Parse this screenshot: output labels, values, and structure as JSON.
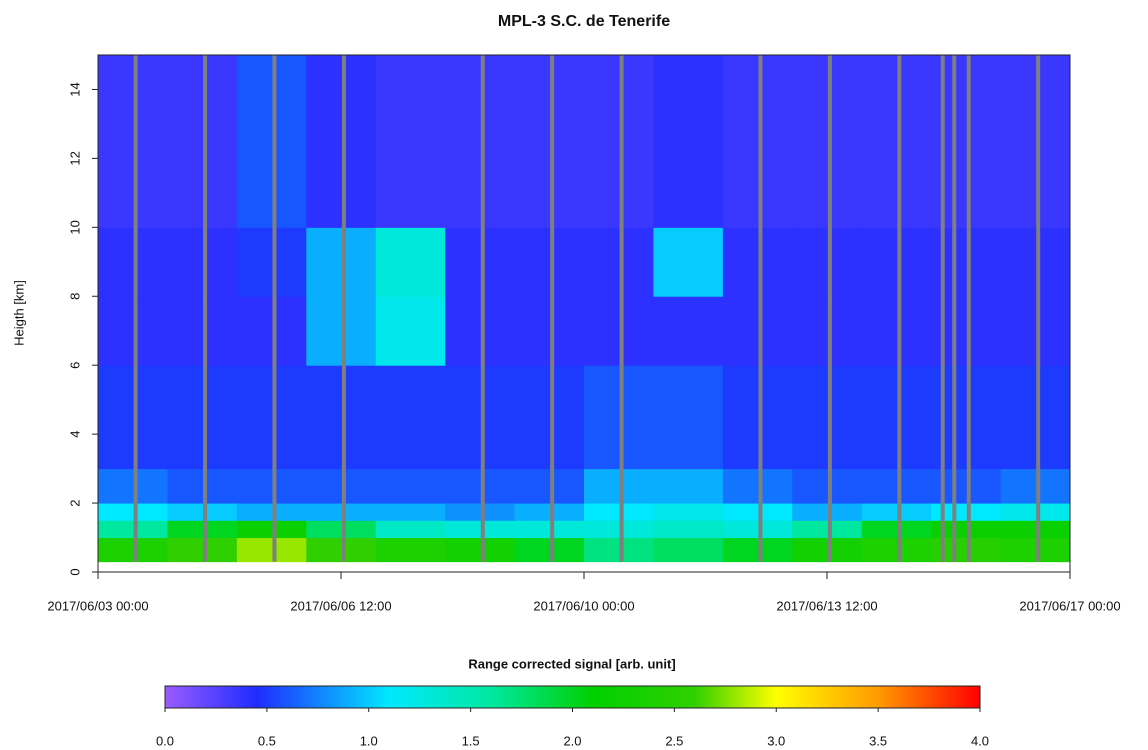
{
  "chart_data": {
    "type": "heatmap",
    "title": "MPL-3 S.C. de Tenerife",
    "y_label": "Heigth [km]",
    "xlim": [
      0,
      336
    ],
    "xticks": [
      {
        "value": 0,
        "label": "2017/06/03 00:00"
      },
      {
        "value": 84,
        "label": "2017/06/06 12:00"
      },
      {
        "value": 168,
        "label": "2017/06/10 00:00"
      },
      {
        "value": 252,
        "label": "2017/06/13 12:00"
      },
      {
        "value": 336,
        "label": "2017/06/17 00:00"
      }
    ],
    "ylim": [
      0,
      15
    ],
    "yticks": [
      0,
      2,
      4,
      6,
      8,
      10,
      12,
      14
    ],
    "x_bins": [
      0,
      24,
      48,
      72,
      96,
      120,
      144,
      168,
      192,
      216,
      240,
      264,
      288,
      312,
      336
    ],
    "y_bins": [
      0.3,
      1,
      1.5,
      2,
      3,
      6,
      8,
      10,
      15
    ],
    "z": [
      [
        2.4,
        2.6,
        2.8,
        2.6,
        2.4,
        2.3,
        2.0,
        1.7,
        1.8,
        2.0,
        2.3,
        2.4,
        2.5,
        2.4
      ],
      [
        1.6,
        2.0,
        2.2,
        1.8,
        1.4,
        1.3,
        1.3,
        1.3,
        1.4,
        1.3,
        1.6,
        2.0,
        2.2,
        2.2
      ],
      [
        1.1,
        1.0,
        0.9,
        0.9,
        0.9,
        0.8,
        0.9,
        1.1,
        1.2,
        1.1,
        0.9,
        1.0,
        1.1,
        1.2
      ],
      [
        0.7,
        0.6,
        0.6,
        0.6,
        0.6,
        0.6,
        0.6,
        0.9,
        0.9,
        0.7,
        0.6,
        0.6,
        0.6,
        0.7
      ],
      [
        0.5,
        0.5,
        0.5,
        0.5,
        0.5,
        0.5,
        0.5,
        0.6,
        0.6,
        0.5,
        0.5,
        0.5,
        0.5,
        0.5
      ],
      [
        0.4,
        0.4,
        0.4,
        0.9,
        1.2,
        0.4,
        0.4,
        0.4,
        0.4,
        0.4,
        0.4,
        0.4,
        0.4,
        0.4
      ],
      [
        0.4,
        0.4,
        0.5,
        0.9,
        1.3,
        0.4,
        0.4,
        0.4,
        1.0,
        0.4,
        0.4,
        0.4,
        0.4,
        0.4
      ],
      [
        0.35,
        0.35,
        0.6,
        0.4,
        0.35,
        0.35,
        0.35,
        0.35,
        0.4,
        0.35,
        0.35,
        0.35,
        0.35,
        0.35
      ]
    ],
    "gaps": [
      13,
      37,
      61,
      85,
      133,
      157,
      181,
      229,
      253,
      277,
      292,
      296,
      301,
      325
    ],
    "gap_color": "#7f7f7f",
    "colorbar": {
      "title": "Range corrected signal [arb. unit]",
      "lim": [
        0,
        4
      ],
      "ticks": [
        {
          "value": 0,
          "label": "0.0"
        },
        {
          "value": 0.5,
          "label": "0.5"
        },
        {
          "value": 1,
          "label": "1.0"
        },
        {
          "value": 1.5,
          "label": "1.5"
        },
        {
          "value": 2,
          "label": "2.0"
        },
        {
          "value": 2.5,
          "label": "2.5"
        },
        {
          "value": 3,
          "label": "3.0"
        },
        {
          "value": 3.5,
          "label": "3.5"
        },
        {
          "value": 4,
          "label": "4.0"
        }
      ],
      "colorscale": [
        [
          0,
          "#9a5cff"
        ],
        [
          0.45,
          "#1f2cff"
        ],
        [
          1.1,
          "#00e8ff"
        ],
        [
          1.6,
          "#00e8a0"
        ],
        [
          2.1,
          "#00d000"
        ],
        [
          2.6,
          "#30d000"
        ],
        [
          3.0,
          "#ffff00"
        ],
        [
          3.5,
          "#ff9a00"
        ],
        [
          4,
          "#ff0000"
        ]
      ]
    }
  }
}
